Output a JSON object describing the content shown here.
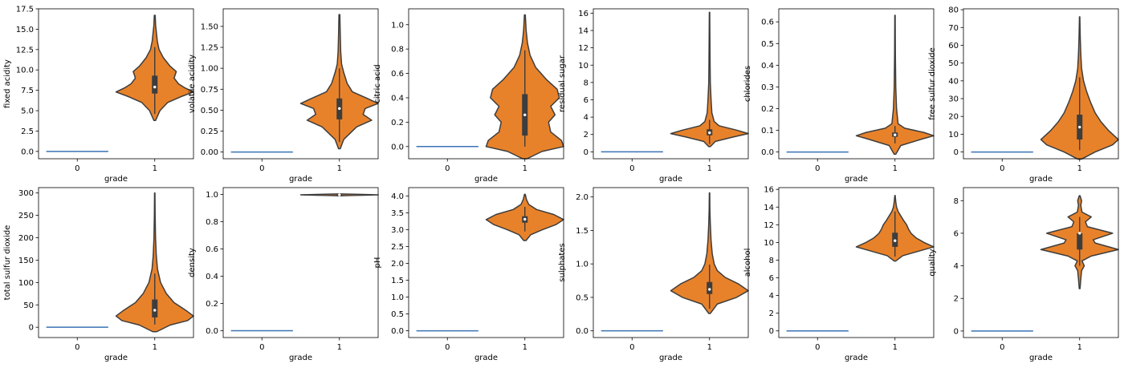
{
  "colors": {
    "orange": "#e8822a",
    "blue_line": "#3a73b5",
    "edge": "#3d3d3d"
  },
  "chart_data": [
    {
      "type": "violin",
      "xlabel": "grade",
      "ylabel": "fixed acidity",
      "categories": [
        "0",
        "1"
      ],
      "ylim": [
        -0.9,
        17.5
      ],
      "yticks": [
        0.0,
        2.5,
        5.0,
        7.5,
        10.0,
        12.5,
        15.0,
        17.5
      ],
      "ytick_labels": [
        "0.0",
        "2.5",
        "5.0",
        "7.5",
        "10.0",
        "12.5",
        "15.0",
        "17.5"
      ],
      "zero_line": 0.0,
      "violin": {
        "min": 3.8,
        "max": 16.7,
        "q1": 7.1,
        "median": 7.9,
        "q3": 9.3,
        "whisker_low": 4.6,
        "whisker_high": 12.8,
        "profile": [
          [
            3.8,
            0.02
          ],
          [
            5.0,
            0.12
          ],
          [
            6.0,
            0.3
          ],
          [
            6.7,
            0.6
          ],
          [
            7.3,
            0.9
          ],
          [
            7.8,
            0.7
          ],
          [
            8.3,
            0.55
          ],
          [
            9.0,
            0.45
          ],
          [
            9.8,
            0.5
          ],
          [
            10.5,
            0.35
          ],
          [
            11.5,
            0.2
          ],
          [
            12.5,
            0.1
          ],
          [
            13.5,
            0.06
          ],
          [
            14.5,
            0.04
          ],
          [
            15.5,
            0.02
          ],
          [
            16.7,
            0.01
          ]
        ]
      }
    },
    {
      "type": "violin",
      "xlabel": "grade",
      "ylabel": "volatile acidity",
      "categories": [
        "0",
        "1"
      ],
      "ylim": [
        -0.08,
        1.71
      ],
      "yticks": [
        0.0,
        0.25,
        0.5,
        0.75,
        1.0,
        1.25,
        1.5
      ],
      "ytick_labels": [
        "0.00",
        "0.25",
        "0.50",
        "0.75",
        "1.00",
        "1.25",
        "1.50"
      ],
      "zero_line": 0.0,
      "violin": {
        "min": 0.04,
        "max": 1.64,
        "q1": 0.39,
        "median": 0.52,
        "q3": 0.64,
        "whisker_low": 0.12,
        "whisker_high": 1.0,
        "profile": [
          [
            0.04,
            0.02
          ],
          [
            0.15,
            0.1
          ],
          [
            0.3,
            0.4
          ],
          [
            0.38,
            0.75
          ],
          [
            0.45,
            0.55
          ],
          [
            0.52,
            0.6
          ],
          [
            0.58,
            0.9
          ],
          [
            0.64,
            0.65
          ],
          [
            0.72,
            0.3
          ],
          [
            0.82,
            0.18
          ],
          [
            0.95,
            0.1
          ],
          [
            1.05,
            0.05
          ],
          [
            1.2,
            0.03
          ],
          [
            1.4,
            0.02
          ],
          [
            1.64,
            0.01
          ]
        ]
      }
    },
    {
      "type": "violin",
      "xlabel": "grade",
      "ylabel": "citric acid",
      "categories": [
        "0",
        "1"
      ],
      "ylim": [
        -0.1,
        1.13
      ],
      "yticks": [
        0.0,
        0.2,
        0.4,
        0.6,
        0.8,
        1.0
      ],
      "ytick_labels": [
        "0.0",
        "0.2",
        "0.4",
        "0.6",
        "0.8",
        "1.0"
      ],
      "zero_line": 0.0,
      "violin": {
        "min": -0.1,
        "max": 1.08,
        "q1": 0.09,
        "median": 0.26,
        "q3": 0.43,
        "whisker_low": 0.0,
        "whisker_high": 0.79,
        "profile": [
          [
            -0.1,
            0.05
          ],
          [
            -0.04,
            0.4
          ],
          [
            0.0,
            0.9
          ],
          [
            0.05,
            0.85
          ],
          [
            0.12,
            0.6
          ],
          [
            0.2,
            0.55
          ],
          [
            0.26,
            0.7
          ],
          [
            0.33,
            0.6
          ],
          [
            0.4,
            0.8
          ],
          [
            0.47,
            0.75
          ],
          [
            0.55,
            0.5
          ],
          [
            0.65,
            0.25
          ],
          [
            0.75,
            0.12
          ],
          [
            0.85,
            0.06
          ],
          [
            0.95,
            0.03
          ],
          [
            1.08,
            0.01
          ]
        ]
      }
    },
    {
      "type": "violin",
      "xlabel": "grade",
      "ylabel": "residual sugar",
      "categories": [
        "0",
        "1"
      ],
      "ylim": [
        -0.8,
        16.5
      ],
      "yticks": [
        0,
        2,
        4,
        6,
        8,
        10,
        12,
        14,
        16
      ],
      "ytick_labels": [
        "0",
        "2",
        "4",
        "6",
        "8",
        "10",
        "12",
        "14",
        "16"
      ],
      "zero_line": 0.0,
      "violin": {
        "min": 0.6,
        "max": 16.1,
        "q1": 1.9,
        "median": 2.2,
        "q3": 2.6,
        "whisker_low": 0.9,
        "whisker_high": 3.7,
        "profile": [
          [
            0.6,
            0.02
          ],
          [
            1.2,
            0.15
          ],
          [
            1.7,
            0.6
          ],
          [
            2.1,
            1.0
          ],
          [
            2.5,
            0.7
          ],
          [
            3.0,
            0.25
          ],
          [
            3.5,
            0.12
          ],
          [
            4.5,
            0.06
          ],
          [
            6.0,
            0.04
          ],
          [
            8.0,
            0.02
          ],
          [
            10.0,
            0.015
          ],
          [
            13.0,
            0.01
          ],
          [
            16.1,
            0.005
          ]
        ]
      }
    },
    {
      "type": "violin",
      "xlabel": "grade",
      "ylabel": "chlorides",
      "categories": [
        "0",
        "1"
      ],
      "ylim": [
        -0.031,
        0.66
      ],
      "yticks": [
        0.0,
        0.1,
        0.2,
        0.3,
        0.4,
        0.5,
        0.6
      ],
      "ytick_labels": [
        "0.0",
        "0.1",
        "0.2",
        "0.3",
        "0.4",
        "0.5",
        "0.6"
      ],
      "zero_line": 0.0,
      "violin": {
        "min": -0.01,
        "max": 0.63,
        "q1": 0.07,
        "median": 0.079,
        "q3": 0.09,
        "whisker_low": 0.04,
        "whisker_high": 0.12,
        "profile": [
          [
            -0.01,
            0.02
          ],
          [
            0.03,
            0.15
          ],
          [
            0.06,
            0.7
          ],
          [
            0.075,
            1.0
          ],
          [
            0.09,
            0.75
          ],
          [
            0.11,
            0.25
          ],
          [
            0.13,
            0.08
          ],
          [
            0.2,
            0.04
          ],
          [
            0.3,
            0.02
          ],
          [
            0.45,
            0.01
          ],
          [
            0.63,
            0.005
          ]
        ]
      }
    },
    {
      "type": "violin",
      "xlabel": "grade",
      "ylabel": "free sulfur dioxide",
      "categories": [
        "0",
        "1"
      ],
      "ylim": [
        -3.8,
        80.5
      ],
      "yticks": [
        0,
        10,
        20,
        30,
        40,
        50,
        60,
        70,
        80
      ],
      "ytick_labels": [
        "0",
        "10",
        "20",
        "30",
        "40",
        "50",
        "60",
        "70",
        "80"
      ],
      "zero_line": 0.0,
      "violin": {
        "min": -4.0,
        "max": 76.0,
        "q1": 7.0,
        "median": 14.0,
        "q3": 21.0,
        "whisker_low": 1.0,
        "whisker_high": 42.0,
        "profile": [
          [
            -4.0,
            0.05
          ],
          [
            0.0,
            0.4
          ],
          [
            4.0,
            0.85
          ],
          [
            7.0,
            1.0
          ],
          [
            12.0,
            0.75
          ],
          [
            17.0,
            0.55
          ],
          [
            22.0,
            0.4
          ],
          [
            28.0,
            0.28
          ],
          [
            34.0,
            0.18
          ],
          [
            40.0,
            0.1
          ],
          [
            47.0,
            0.05
          ],
          [
            55.0,
            0.03
          ],
          [
            65.0,
            0.015
          ],
          [
            76.0,
            0.005
          ]
        ]
      }
    },
    {
      "type": "violin",
      "xlabel": "grade",
      "ylabel": "total sulfur dioxide",
      "categories": [
        "0",
        "1"
      ],
      "ylim": [
        -23,
        312
      ],
      "yticks": [
        0,
        50,
        100,
        150,
        200,
        250,
        300
      ],
      "ytick_labels": [
        "0",
        "50",
        "100",
        "150",
        "200",
        "250",
        "300"
      ],
      "zero_line": 0.0,
      "violin": {
        "min": -10.0,
        "max": 300.0,
        "q1": 22.0,
        "median": 38.0,
        "q3": 62.0,
        "whisker_low": 6.0,
        "whisker_high": 120.0,
        "profile": [
          [
            -10.0,
            0.05
          ],
          [
            5.0,
            0.4
          ],
          [
            15.0,
            0.85
          ],
          [
            25.0,
            1.0
          ],
          [
            38.0,
            0.8
          ],
          [
            55.0,
            0.5
          ],
          [
            75.0,
            0.3
          ],
          [
            100.0,
            0.15
          ],
          [
            130.0,
            0.07
          ],
          [
            160.0,
            0.04
          ],
          [
            200.0,
            0.02
          ],
          [
            250.0,
            0.01
          ],
          [
            300.0,
            0.005
          ]
        ]
      }
    },
    {
      "type": "violin",
      "xlabel": "grade",
      "ylabel": "density",
      "categories": [
        "0",
        "1"
      ],
      "ylim": [
        -0.05,
        1.05
      ],
      "yticks": [
        0.0,
        0.2,
        0.4,
        0.6,
        0.8,
        1.0
      ],
      "ytick_labels": [
        "0.0",
        "0.2",
        "0.4",
        "0.6",
        "0.8",
        "1.0"
      ],
      "zero_line": 0.0,
      "violin": {
        "min": 0.99,
        "max": 1.004,
        "q1": 0.9956,
        "median": 0.9968,
        "q3": 0.9978,
        "whisker_low": 0.99,
        "whisker_high": 1.001,
        "profile": [
          [
            0.991,
            0.15
          ],
          [
            0.994,
            0.6
          ],
          [
            0.997,
            1.0
          ],
          [
            1.0,
            0.6
          ],
          [
            1.003,
            0.15
          ]
        ]
      }
    },
    {
      "type": "violin",
      "xlabel": "grade",
      "ylabel": "pH",
      "categories": [
        "0",
        "1"
      ],
      "ylim": [
        -0.2,
        4.25
      ],
      "yticks": [
        0.0,
        0.5,
        1.0,
        1.5,
        2.0,
        2.5,
        3.0,
        3.5,
        4.0
      ],
      "ytick_labels": [
        "0.0",
        "0.5",
        "1.0",
        "1.5",
        "2.0",
        "2.5",
        "3.0",
        "3.5",
        "4.0"
      ],
      "zero_line": 0.0,
      "violin": {
        "min": 2.68,
        "max": 4.05,
        "q1": 3.21,
        "median": 3.31,
        "q3": 3.4,
        "whisker_low": 2.95,
        "whisker_high": 3.68,
        "profile": [
          [
            2.68,
            0.03
          ],
          [
            2.85,
            0.15
          ],
          [
            3.0,
            0.45
          ],
          [
            3.15,
            0.8
          ],
          [
            3.3,
            1.0
          ],
          [
            3.45,
            0.75
          ],
          [
            3.6,
            0.3
          ],
          [
            3.75,
            0.1
          ],
          [
            3.9,
            0.04
          ],
          [
            4.05,
            0.01
          ]
        ]
      }
    },
    {
      "type": "violin",
      "xlabel": "grade",
      "ylabel": "sulphates",
      "categories": [
        "0",
        "1"
      ],
      "ylim": [
        -0.1,
        2.14
      ],
      "yticks": [
        0.0,
        0.5,
        1.0,
        1.5,
        2.0
      ],
      "ytick_labels": [
        "0.0",
        "0.5",
        "1.0",
        "1.5",
        "2.0"
      ],
      "zero_line": 0.0,
      "violin": {
        "min": 0.26,
        "max": 2.06,
        "q1": 0.55,
        "median": 0.62,
        "q3": 0.73,
        "whisker_low": 0.33,
        "whisker_high": 0.99,
        "profile": [
          [
            0.26,
            0.02
          ],
          [
            0.4,
            0.2
          ],
          [
            0.5,
            0.7
          ],
          [
            0.6,
            1.0
          ],
          [
            0.7,
            0.75
          ],
          [
            0.8,
            0.4
          ],
          [
            0.9,
            0.2
          ],
          [
            1.0,
            0.12
          ],
          [
            1.15,
            0.07
          ],
          [
            1.35,
            0.04
          ],
          [
            1.6,
            0.02
          ],
          [
            1.8,
            0.01
          ],
          [
            2.06,
            0.005
          ]
        ]
      }
    },
    {
      "type": "violin",
      "xlabel": "grade",
      "ylabel": "alcohol",
      "categories": [
        "0",
        "1"
      ],
      "ylim": [
        -0.75,
        16.2
      ],
      "yticks": [
        0,
        2,
        4,
        6,
        8,
        10,
        12,
        14,
        16
      ],
      "ytick_labels": [
        "0",
        "2",
        "4",
        "6",
        "8",
        "10",
        "12",
        "14",
        "16"
      ],
      "zero_line": 0.0,
      "violin": {
        "min": 7.9,
        "max": 15.3,
        "q1": 9.5,
        "median": 10.2,
        "q3": 11.1,
        "whisker_low": 8.4,
        "whisker_high": 13.5,
        "profile": [
          [
            7.9,
            0.02
          ],
          [
            8.5,
            0.2
          ],
          [
            9.0,
            0.6
          ],
          [
            9.5,
            1.0
          ],
          [
            10.0,
            0.75
          ],
          [
            10.5,
            0.55
          ],
          [
            11.0,
            0.42
          ],
          [
            11.5,
            0.35
          ],
          [
            12.0,
            0.3
          ],
          [
            12.5,
            0.22
          ],
          [
            13.0,
            0.15
          ],
          [
            13.5,
            0.08
          ],
          [
            14.0,
            0.04
          ],
          [
            14.6,
            0.02
          ],
          [
            15.3,
            0.005
          ]
        ]
      }
    },
    {
      "type": "violin",
      "xlabel": "grade",
      "ylabel": "quality",
      "categories": [
        "0",
        "1"
      ],
      "ylim": [
        -0.4,
        8.8
      ],
      "yticks": [
        0,
        2,
        4,
        6,
        8
      ],
      "ytick_labels": [
        "0",
        "2",
        "4",
        "6",
        "8"
      ],
      "zero_line": 0.0,
      "violin": {
        "min": 2.6,
        "max": 8.3,
        "q1": 5.0,
        "median": 6.0,
        "q3": 6.0,
        "whisker_low": 4.0,
        "whisker_high": 7.0,
        "profile": [
          [
            2.6,
            0.01
          ],
          [
            3.2,
            0.03
          ],
          [
            3.7,
            0.05
          ],
          [
            4.0,
            0.12
          ],
          [
            4.3,
            0.06
          ],
          [
            4.6,
            0.3
          ],
          [
            5.0,
            1.0
          ],
          [
            5.4,
            0.4
          ],
          [
            5.6,
            0.35
          ],
          [
            6.0,
            0.85
          ],
          [
            6.4,
            0.2
          ],
          [
            6.7,
            0.15
          ],
          [
            7.0,
            0.3
          ],
          [
            7.3,
            0.06
          ],
          [
            7.7,
            0.03
          ],
          [
            8.0,
            0.05
          ],
          [
            8.3,
            0.01
          ]
        ]
      }
    }
  ]
}
